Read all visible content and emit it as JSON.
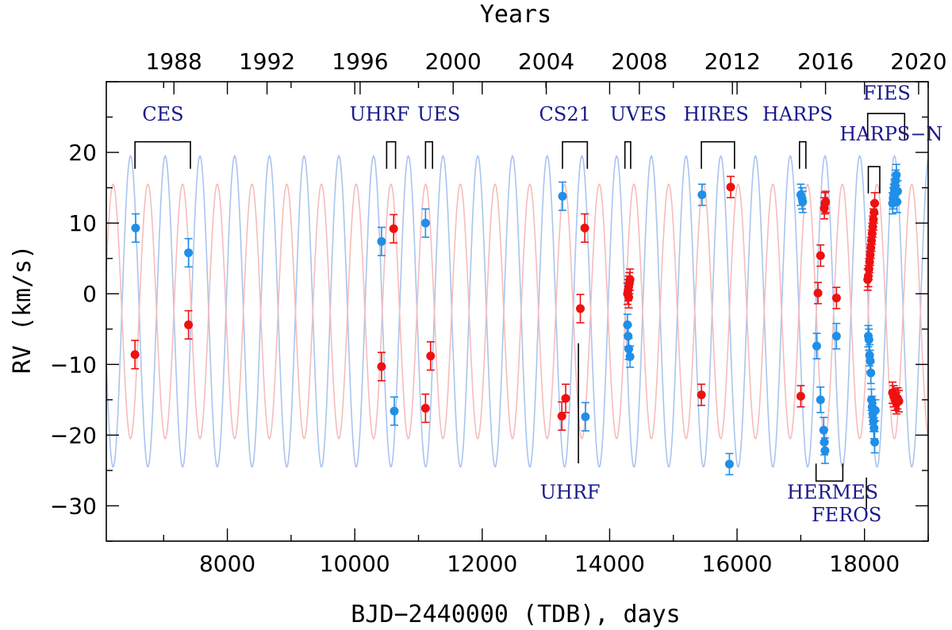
{
  "chart_data": {
    "type": "scatter",
    "xlabel": "BJD−2440000 (TDB), days",
    "ylabel": "RV (km/s)",
    "top_axis_label": "Years",
    "xlim": [
      6100,
      19000
    ],
    "ylim": [
      -35,
      30
    ],
    "x_ticks": [
      8000,
      10000,
      12000,
      14000,
      16000,
      18000
    ],
    "y_ticks": [
      -30,
      -20,
      -10,
      0,
      10,
      20
    ],
    "y_tick_labels": [
      "−30",
      "−20",
      "−10",
      "0",
      "10",
      "20"
    ],
    "year_ticks": [
      1988,
      1992,
      1996,
      2000,
      2004,
      2008,
      2012,
      2016,
      2020
    ],
    "grid": false,
    "models": [
      {
        "color": "#a9c4ee",
        "gamma": -2.5,
        "amplitude": 22.0,
        "period_days": 545,
        "phase_ref_day": 6480
      },
      {
        "color": "#f6bcbc",
        "gamma": -2.5,
        "amplitude": 18.0,
        "period_days": 545,
        "phase_ref_day": 6752
      }
    ],
    "series": [
      {
        "color": "#1f8fe8",
        "points": [
          [
            6560,
            9.3,
            2.0
          ],
          [
            7390,
            5.8,
            2.0
          ],
          [
            10420,
            7.4,
            2.0
          ],
          [
            10620,
            -16.6,
            2.0
          ],
          [
            11110,
            10.0,
            2.0
          ],
          [
            13260,
            13.8,
            2.0
          ],
          [
            13620,
            -17.4,
            2.0
          ],
          [
            14280,
            -4.4,
            1.5
          ],
          [
            14290,
            -6.0,
            1.5
          ],
          [
            14300,
            -7.8,
            1.5
          ],
          [
            14320,
            -8.9,
            1.5
          ],
          [
            15450,
            14.0,
            1.5
          ],
          [
            15880,
            -24.1,
            1.5
          ],
          [
            17000,
            14.0,
            1.5
          ],
          [
            17020,
            13.5,
            1.5
          ],
          [
            17030,
            13.0,
            1.5
          ],
          [
            17250,
            -7.4,
            1.8
          ],
          [
            17310,
            -15.0,
            1.8
          ],
          [
            17360,
            -19.3,
            1.8
          ],
          [
            17370,
            -21.0,
            1.8
          ],
          [
            17380,
            -22.2,
            1.8
          ],
          [
            17560,
            -6.0,
            1.8
          ],
          [
            18060,
            -6.0,
            1.5
          ],
          [
            18070,
            -6.5,
            1.5
          ],
          [
            18080,
            -8.7,
            1.5
          ],
          [
            18090,
            -9.5,
            1.5
          ],
          [
            18100,
            -11.2,
            1.5
          ],
          [
            18110,
            -15.0,
            1.5
          ],
          [
            18120,
            -16.0,
            1.5
          ],
          [
            18130,
            -17.0,
            1.5
          ],
          [
            18140,
            -18.0,
            1.5
          ],
          [
            18150,
            -19.0,
            1.5
          ],
          [
            18160,
            -21.0,
            1.5
          ],
          [
            18170,
            -16.5,
            1.5
          ],
          [
            18440,
            12.8,
            1.5
          ],
          [
            18450,
            13.5,
            1.5
          ],
          [
            18460,
            14.0,
            1.5
          ],
          [
            18470,
            14.7,
            1.5
          ],
          [
            18480,
            15.3,
            1.5
          ],
          [
            18490,
            16.0,
            1.5
          ],
          [
            18500,
            16.8,
            1.5
          ],
          [
            18510,
            13.0,
            1.5
          ],
          [
            18520,
            14.5,
            1.5
          ]
        ]
      },
      {
        "color": "#ee1111",
        "points": [
          [
            6550,
            -8.6,
            2.0
          ],
          [
            7390,
            -4.4,
            2.0
          ],
          [
            10420,
            -10.3,
            2.0
          ],
          [
            10610,
            9.2,
            2.0
          ],
          [
            11110,
            -16.2,
            2.0
          ],
          [
            11190,
            -8.8,
            2.0
          ],
          [
            13250,
            -17.3,
            2.0
          ],
          [
            13310,
            -14.8,
            2.0
          ],
          [
            13540,
            -2.1,
            2.0
          ],
          [
            13610,
            9.3,
            2.0
          ],
          [
            14280,
            0.0,
            1.5
          ],
          [
            14290,
            0.5,
            1.5
          ],
          [
            14300,
            1.0,
            1.5
          ],
          [
            14310,
            1.5,
            1.5
          ],
          [
            14320,
            2.0,
            1.5
          ],
          [
            14300,
            -0.5,
            1.5
          ],
          [
            15440,
            -14.3,
            1.5
          ],
          [
            15900,
            15.1,
            1.5
          ],
          [
            17000,
            -14.5,
            1.5
          ],
          [
            17270,
            0.1,
            1.5
          ],
          [
            17310,
            5.4,
            1.5
          ],
          [
            17370,
            12.1,
            1.5
          ],
          [
            17380,
            12.8,
            1.5
          ],
          [
            17390,
            13.0,
            1.5
          ],
          [
            17560,
            -0.6,
            1.5
          ],
          [
            18050,
            2.0,
            1.5
          ],
          [
            18060,
            2.5,
            1.5
          ],
          [
            18070,
            3.5,
            1.5
          ],
          [
            18080,
            4.5,
            1.5
          ],
          [
            18090,
            5.5,
            1.5
          ],
          [
            18100,
            6.5,
            1.5
          ],
          [
            18110,
            7.5,
            1.5
          ],
          [
            18120,
            8.5,
            1.5
          ],
          [
            18130,
            9.5,
            1.5
          ],
          [
            18140,
            10.5,
            1.5
          ],
          [
            18150,
            11.5,
            1.5
          ],
          [
            18160,
            12.8,
            1.5
          ],
          [
            18440,
            -14.0,
            1.5
          ],
          [
            18460,
            -14.5,
            1.5
          ],
          [
            18480,
            -15.0,
            1.5
          ],
          [
            18500,
            -15.5,
            1.5
          ],
          [
            18520,
            -14.8,
            1.5
          ],
          [
            18540,
            -15.2,
            1.5
          ]
        ]
      }
    ],
    "instruments": [
      {
        "label": "CES",
        "start": 6550,
        "end": 7420,
        "y_bracket": 21.5,
        "bracket_dir": "down",
        "label_x": 6990,
        "label_y": 24.5
      },
      {
        "label": "UHRF",
        "start": 10500,
        "end": 10640,
        "y_bracket": 21.5,
        "bracket_dir": "down",
        "label_x": 10390,
        "label_y": 24.5
      },
      {
        "label": "UES",
        "start": 11110,
        "end": 11220,
        "y_bracket": 21.5,
        "bracket_dir": "down",
        "label_x": 11320,
        "label_y": 24.5
      },
      {
        "label": "CS21",
        "start": 13260,
        "end": 13650,
        "y_bracket": 21.5,
        "bracket_dir": "down",
        "label_x": 13300,
        "label_y": 24.5
      },
      {
        "label": "UVES",
        "start": 14240,
        "end": 14330,
        "y_bracket": 21.5,
        "bracket_dir": "down",
        "label_x": 14450,
        "label_y": 24.5
      },
      {
        "label": "HIRES",
        "start": 15440,
        "end": 15960,
        "y_bracket": 21.5,
        "bracket_dir": "down",
        "label_x": 15670,
        "label_y": 24.5
      },
      {
        "label": "HARPS",
        "start": 16980,
        "end": 17080,
        "y_bracket": 21.5,
        "bracket_dir": "down",
        "label_x": 16950,
        "label_y": 24.5
      },
      {
        "label": "FIES",
        "start": 18050,
        "end": 18630,
        "y_bracket": 25.5,
        "bracket_dir": "down",
        "label_x": 18350,
        "label_y": 27.5
      },
      {
        "label": "HARPS−N",
        "start": 18060,
        "end": 18240,
        "y_bracket": 18.0,
        "bracket_dir": "down",
        "label_x": 18420,
        "label_y": 21.7
      },
      {
        "label": "HERMES",
        "start": 17240,
        "end": 17660,
        "y_bracket": -26.5,
        "bracket_dir": "up",
        "label_x": 17500,
        "label_y": -29.0
      },
      {
        "label": "FEROS",
        "start": 18030,
        "end": 18030,
        "y_bracket": -26.0,
        "bracket_dir": "line",
        "label_x": 17720,
        "label_y": -32.2
      },
      {
        "label": "UHRF",
        "start": 13510,
        "end": 13510,
        "y_bracket": -7.0,
        "bracket_dir": "line",
        "label_x": 13380,
        "label_y": -29.0
      }
    ]
  }
}
